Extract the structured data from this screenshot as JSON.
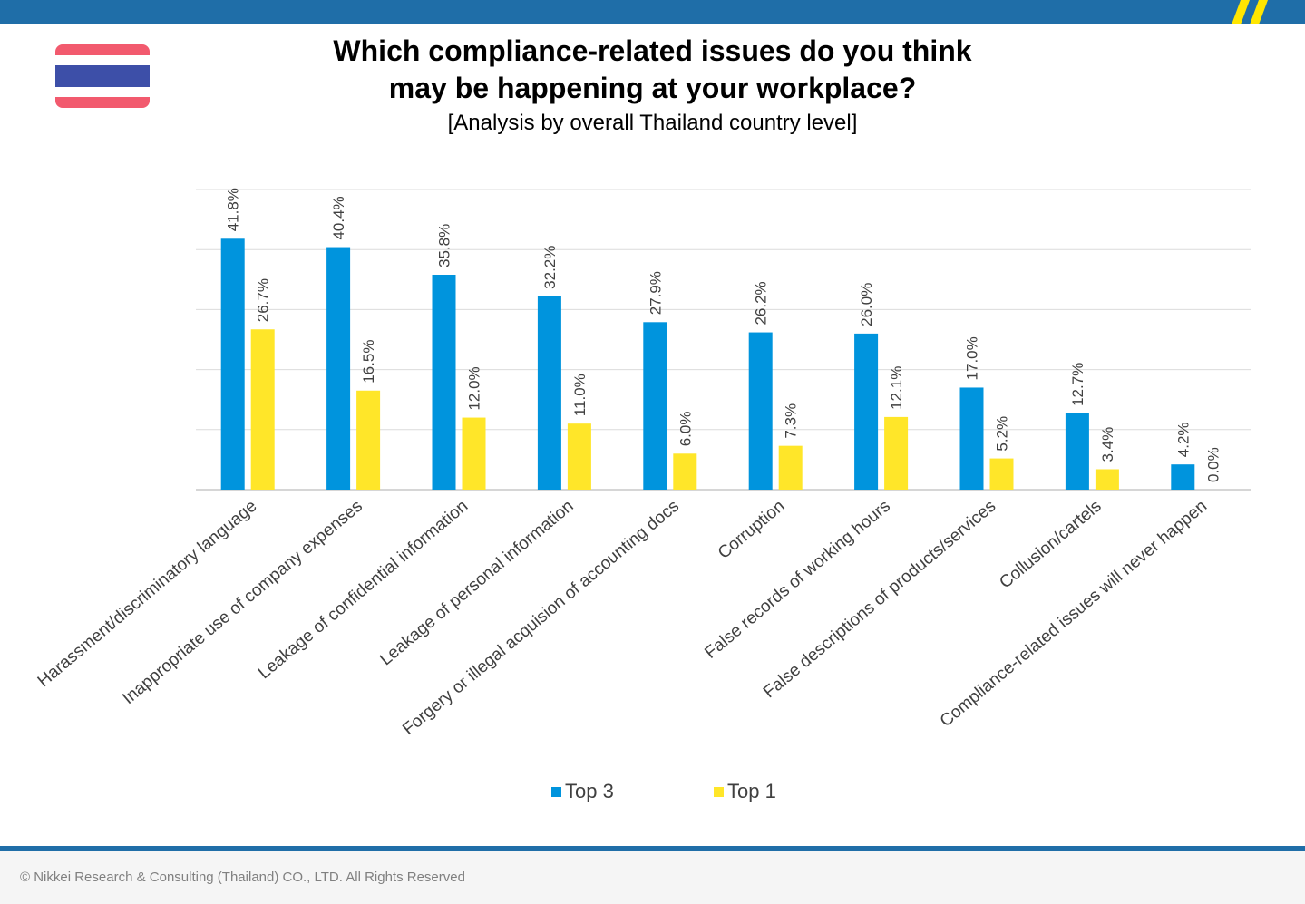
{
  "header": {
    "title_line1": "Which compliance-related issues do you think",
    "title_line2": "may be happening at your workplace?",
    "subtitle": "[Analysis by overall Thailand country level]"
  },
  "footer": {
    "copyright": "© Nikkei Research & Consulting (Thailand) CO., LTD. All Rights Reserved"
  },
  "colors": {
    "brand_blue": "#1f6ea8",
    "accent_yellow": "#ffe600",
    "top3": "#0094dd",
    "top1": "#ffe629"
  },
  "chart_data": {
    "type": "bar",
    "categories": [
      "Harassment/discriminatory language",
      "Inappropriate use of company expenses",
      "Leakage of confidential information",
      "Leakage of personal information",
      "Forgery or illegal acquision of accounting docs",
      "Corruption",
      "False records of working hours",
      "False descriptions of products/services",
      "Collusion/cartels",
      "Compliance-related issues will never happen"
    ],
    "series": [
      {
        "name": "Top 3",
        "color": "#0094dd",
        "values": [
          41.8,
          40.4,
          35.8,
          32.2,
          27.9,
          26.2,
          26.0,
          17.0,
          12.7,
          4.2
        ],
        "labels": [
          "41.8%",
          "40.4%",
          "35.8%",
          "32.2%",
          "27.9%",
          "26.2%",
          "26.0%",
          "17.0%",
          "12.7%",
          "4.2%"
        ]
      },
      {
        "name": "Top 1",
        "color": "#ffe629",
        "values": [
          26.7,
          16.5,
          12.0,
          11.0,
          6.0,
          7.3,
          12.1,
          5.2,
          3.4,
          0.0
        ],
        "labels": [
          "26.7%",
          "16.5%",
          "12.0%",
          "11.0%",
          "6.0%",
          "7.3%",
          "12.1%",
          "5.2%",
          "3.4%",
          "0.0%"
        ]
      }
    ],
    "ylim": [
      0,
      50
    ],
    "grid": true,
    "legend_position": "bottom"
  }
}
